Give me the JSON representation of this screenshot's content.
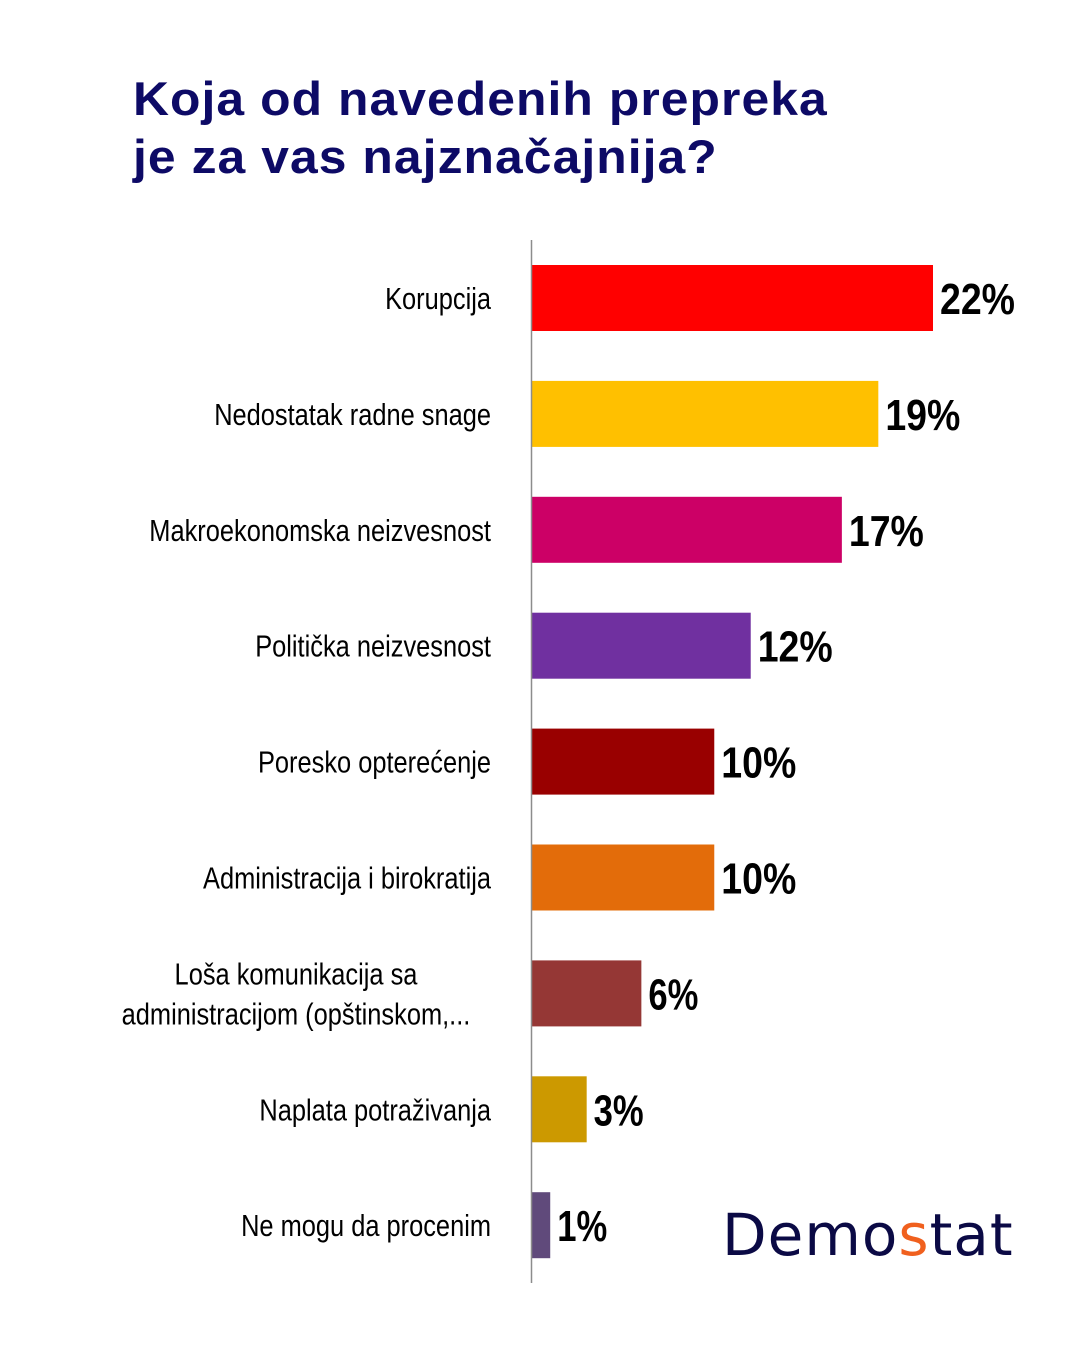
{
  "chart_data": {
    "type": "bar",
    "orientation": "horizontal",
    "title": "Koja od navedenih prepreka je za vas najznačajnija?",
    "title_lines": [
      "Koja od navedenih prepreka",
      "je za vas najznačajnija?"
    ],
    "xlabel": "",
    "ylabel": "",
    "xlim": [
      0,
      22
    ],
    "grid": false,
    "categories": [
      {
        "lines": [
          "Korupcija"
        ]
      },
      {
        "lines": [
          "Nedostatak radne snage"
        ]
      },
      {
        "lines": [
          "Makroekonomska neizvesnost"
        ]
      },
      {
        "lines": [
          "Politička neizvesnost"
        ]
      },
      {
        "lines": [
          "Poresko opterećenje"
        ]
      },
      {
        "lines": [
          "Administracija i birokratija"
        ]
      },
      {
        "lines": [
          "Loša komunikacija sa",
          "administracijom (opštinskom,..."
        ]
      },
      {
        "lines": [
          "Naplata potraživanja"
        ]
      },
      {
        "lines": [
          "Ne mogu da procenim"
        ]
      }
    ],
    "values": [
      22,
      19,
      17,
      12,
      10,
      10,
      6,
      3,
      1
    ],
    "value_labels": [
      "22%",
      "19%",
      "17%",
      "12%",
      "10%",
      "10%",
      "6%",
      "3%",
      "1%"
    ],
    "colors": [
      "#ff0000",
      "#ffc000",
      "#cc0066",
      "#7030a0",
      "#990000",
      "#e36c0a",
      "#953735",
      "#cc9900",
      "#604a7b"
    ]
  },
  "brand": {
    "logo_text_before": "Demo",
    "logo_text_accent": "s",
    "logo_text_after": "tat",
    "logo_color": "#0b0a45",
    "accent_color": "#f0601e"
  }
}
